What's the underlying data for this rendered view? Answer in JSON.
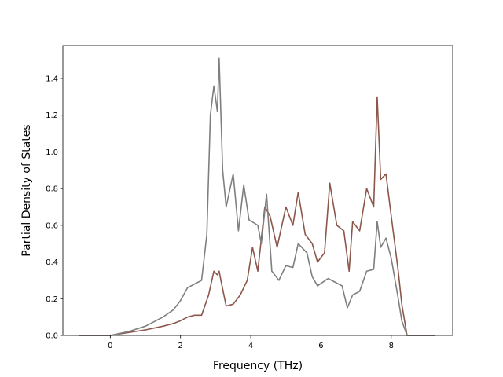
{
  "chart_data": {
    "type": "line",
    "title": "",
    "xlabel": "Frequency (THz)",
    "ylabel": "Partial Density of States",
    "xlim": [
      -1.35,
      9.75
    ],
    "ylim": [
      0,
      1.58
    ],
    "xticks": [
      0,
      2,
      4,
      6,
      8
    ],
    "yticks": [
      0.0,
      0.2,
      0.4,
      0.6,
      0.8,
      1.0,
      1.2,
      1.4
    ],
    "xtick_labels": [
      "0",
      "2",
      "4",
      "6",
      "8"
    ],
    "ytick_labels": [
      "0.0",
      "0.2",
      "0.4",
      "0.6",
      "0.8",
      "1.0",
      "1.2",
      "1.4"
    ],
    "grid": false,
    "legend": "none",
    "series": [
      {
        "color": "#8c564b",
        "x": [
          -0.9,
          0.0,
          0.5,
          1.0,
          1.5,
          1.8,
          2.0,
          2.2,
          2.4,
          2.6,
          2.8,
          2.95,
          3.05,
          3.1,
          3.15,
          3.3,
          3.5,
          3.7,
          3.9,
          4.05,
          4.2,
          4.4,
          4.55,
          4.75,
          5.0,
          5.2,
          5.35,
          5.55,
          5.75,
          5.9,
          6.1,
          6.25,
          6.45,
          6.65,
          6.8,
          6.9,
          7.1,
          7.3,
          7.5,
          7.6,
          7.7,
          7.85,
          8.0,
          8.2,
          8.3,
          8.45,
          9.25
        ],
        "y": [
          0.0,
          0.0,
          0.015,
          0.03,
          0.05,
          0.065,
          0.08,
          0.1,
          0.11,
          0.11,
          0.22,
          0.35,
          0.33,
          0.35,
          0.3,
          0.16,
          0.17,
          0.22,
          0.3,
          0.48,
          0.35,
          0.7,
          0.65,
          0.48,
          0.7,
          0.6,
          0.78,
          0.55,
          0.5,
          0.4,
          0.45,
          0.83,
          0.6,
          0.57,
          0.35,
          0.62,
          0.57,
          0.8,
          0.7,
          1.3,
          0.85,
          0.88,
          0.65,
          0.35,
          0.17,
          0.0,
          0.0
        ]
      },
      {
        "color": "#7f7f7f",
        "x": [
          -0.9,
          0.0,
          0.5,
          1.0,
          1.5,
          1.8,
          2.0,
          2.2,
          2.4,
          2.6,
          2.75,
          2.85,
          2.95,
          3.05,
          3.1,
          3.2,
          3.3,
          3.5,
          3.65,
          3.8,
          3.95,
          4.2,
          4.3,
          4.45,
          4.6,
          4.8,
          5.0,
          5.2,
          5.35,
          5.6,
          5.75,
          5.9,
          6.2,
          6.4,
          6.6,
          6.75,
          6.9,
          7.1,
          7.3,
          7.5,
          7.6,
          7.7,
          7.85,
          8.0,
          8.2,
          8.3,
          8.45,
          9.25
        ],
        "y": [
          0.0,
          0.0,
          0.02,
          0.05,
          0.1,
          0.14,
          0.19,
          0.26,
          0.28,
          0.3,
          0.55,
          1.2,
          1.36,
          1.22,
          1.51,
          0.9,
          0.7,
          0.88,
          0.57,
          0.82,
          0.63,
          0.6,
          0.5,
          0.77,
          0.35,
          0.3,
          0.38,
          0.37,
          0.5,
          0.45,
          0.32,
          0.27,
          0.31,
          0.29,
          0.27,
          0.15,
          0.22,
          0.24,
          0.35,
          0.36,
          0.62,
          0.48,
          0.53,
          0.42,
          0.2,
          0.08,
          0.0,
          0.0
        ]
      }
    ]
  }
}
